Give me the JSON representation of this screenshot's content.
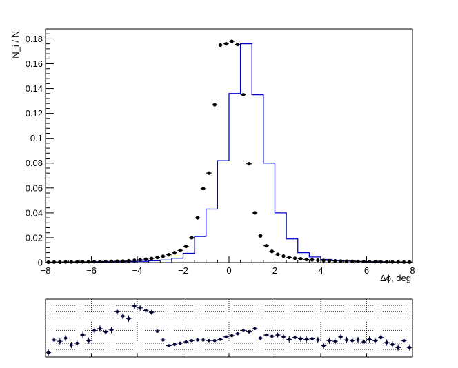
{
  "chart_data": [
    {
      "type": "histogram",
      "ylabel": "N_i / N",
      "xlabel": "Δϕ, deg",
      "xlim": [
        -8,
        8
      ],
      "ylim": [
        0,
        0.188
      ],
      "x_ticks": [
        -8,
        -6,
        -4,
        -2,
        0,
        2,
        4,
        6,
        8
      ],
      "x_tick_labels": [
        "−8",
        "−6",
        "−4",
        "−2",
        "0",
        "2",
        "4",
        "6",
        "8"
      ],
      "y_ticks": [
        0,
        0.02,
        0.04,
        0.06,
        0.08,
        0.1,
        0.12,
        0.14,
        0.16,
        0.18
      ],
      "y_tick_labels": [
        "0",
        "0.02",
        "0.04",
        "0.06",
        "0.08",
        "0.1",
        "0.12",
        "0.14",
        "0.16",
        "0.18"
      ],
      "grid": false,
      "histogram": {
        "color": "#0000cc",
        "bin_edges": [
          -8,
          -7.5,
          -7,
          -6.5,
          -6,
          -5.5,
          -5,
          -4.5,
          -4,
          -3.5,
          -3,
          -2.5,
          -2,
          -1.5,
          -1,
          -0.5,
          0,
          0.5,
          1,
          1.5,
          2,
          2.5,
          3,
          3.5,
          4,
          4.5,
          5,
          5.5,
          6,
          6.5,
          7,
          7.5,
          8
        ],
        "values": [
          0.0003,
          0.0003,
          0.0004,
          0.0004,
          0.0005,
          0.0006,
          0.0007,
          0.0008,
          0.001,
          0.0015,
          0.002,
          0.0035,
          0.0075,
          0.021,
          0.043,
          0.082,
          0.136,
          0.176,
          0.135,
          0.08,
          0.04,
          0.019,
          0.008,
          0.0045,
          0.0025,
          0.0018,
          0.0012,
          0.0009,
          0.0007,
          0.0006,
          0.0004,
          0.0003
        ]
      },
      "points": {
        "color": "#000000",
        "x": [
          -7.875,
          -7.625,
          -7.375,
          -7.125,
          -6.875,
          -6.625,
          -6.375,
          -6.125,
          -5.875,
          -5.625,
          -5.375,
          -5.125,
          -4.875,
          -4.625,
          -4.375,
          -4.125,
          -3.875,
          -3.625,
          -3.375,
          -3.125,
          -2.875,
          -2.625,
          -2.375,
          -2.125,
          -1.875,
          -1.625,
          -1.375,
          -1.125,
          -0.875,
          -0.625,
          -0.375,
          -0.125,
          0.125,
          0.375,
          0.625,
          0.875,
          1.125,
          1.375,
          1.625,
          1.875,
          2.125,
          2.375,
          2.625,
          2.875,
          3.125,
          3.375,
          3.625,
          3.875,
          4.125,
          4.375,
          4.625,
          4.875,
          5.125,
          5.375,
          5.625,
          5.875,
          6.125,
          6.375,
          6.625,
          6.875,
          7.125,
          7.375,
          7.625,
          7.875
        ],
        "y": [
          0.0003,
          0.0004,
          0.0004,
          0.0005,
          0.0005,
          0.0006,
          0.0006,
          0.0007,
          0.0007,
          0.0008,
          0.0009,
          0.001,
          0.0011,
          0.0012,
          0.0015,
          0.0018,
          0.0022,
          0.0027,
          0.0033,
          0.0041,
          0.0051,
          0.0063,
          0.0079,
          0.0098,
          0.013,
          0.02,
          0.036,
          0.0595,
          0.072,
          0.127,
          0.175,
          0.176,
          0.178,
          0.1755,
          0.135,
          0.0795,
          0.04,
          0.0215,
          0.0135,
          0.009,
          0.0067,
          0.0052,
          0.0042,
          0.0035,
          0.003,
          0.0025,
          0.0022,
          0.0019,
          0.0017,
          0.0015,
          0.0014,
          0.0012,
          0.0011,
          0.001,
          0.0009,
          0.0008,
          0.0008,
          0.0007,
          0.0006,
          0.0006,
          0.0005,
          0.0005,
          0.0004,
          0.0004
        ]
      }
    },
    {
      "type": "scatter",
      "xlim": [
        -8,
        8
      ],
      "ylim": [
        0.78,
        1.7
      ],
      "grid": true,
      "x_gridlines": [
        -8,
        -6,
        -4,
        -2,
        0,
        2,
        4,
        6,
        8
      ],
      "y_gridlines": [
        0.9,
        1.0,
        1.2,
        1.4,
        1.5,
        1.6,
        1.7
      ],
      "points": {
        "color": "#000033",
        "x": [
          -7.875,
          -7.625,
          -7.375,
          -7.125,
          -6.875,
          -6.625,
          -6.375,
          -6.125,
          -5.875,
          -5.625,
          -5.375,
          -5.125,
          -4.875,
          -4.625,
          -4.375,
          -4.125,
          -3.875,
          -3.625,
          -3.375,
          -3.125,
          -2.875,
          -2.625,
          -2.375,
          -2.125,
          -1.875,
          -1.625,
          -1.375,
          -1.125,
          -0.875,
          -0.625,
          -0.375,
          -0.125,
          0.125,
          0.375,
          0.625,
          0.875,
          1.125,
          1.375,
          1.625,
          1.875,
          2.125,
          2.375,
          2.625,
          2.875,
          3.125,
          3.375,
          3.625,
          3.875,
          4.125,
          4.375,
          4.625,
          4.875,
          5.125,
          5.375,
          5.625,
          5.875,
          6.125,
          6.375,
          6.625,
          6.875,
          7.125,
          7.375,
          7.625,
          7.875
        ],
        "y": [
          0.85,
          1.05,
          1.03,
          1.08,
          0.97,
          1.0,
          1.13,
          1.04,
          1.2,
          1.23,
          1.18,
          1.21,
          1.5,
          1.43,
          1.39,
          1.59,
          1.56,
          1.52,
          1.49,
          1.19,
          1.05,
          0.96,
          0.98,
          1.0,
          1.02,
          1.04,
          1.05,
          1.05,
          1.04,
          1.04,
          1.06,
          1.1,
          1.12,
          1.15,
          1.2,
          1.18,
          1.23,
          1.08,
          1.13,
          1.11,
          1.13,
          1.1,
          1.06,
          1.09,
          1.07,
          1.06,
          1.07,
          1.05,
          0.96,
          1.04,
          1.03,
          1.1,
          1.05,
          1.04,
          1.05,
          1.02,
          1.06,
          1.04,
          1.09,
          1.01,
          0.98,
          0.93,
          1.04,
          0.93
        ],
        "yerr": [
          0.05,
          0.05,
          0.05,
          0.05,
          0.05,
          0.05,
          0.05,
          0.05,
          0.05,
          0.05,
          0.05,
          0.05,
          0.05,
          0.05,
          0.05,
          0.05,
          0.05,
          0.04,
          0.04,
          0.02,
          0.015,
          0.01,
          0.01,
          0.01,
          0.01,
          0.01,
          0.01,
          0.01,
          0.01,
          0.01,
          0.01,
          0.01,
          0.01,
          0.01,
          0.01,
          0.01,
          0.01,
          0.02,
          0.02,
          0.03,
          0.04,
          0.04,
          0.05,
          0.05,
          0.05,
          0.05,
          0.05,
          0.05,
          0.05,
          0.05,
          0.05,
          0.05,
          0.05,
          0.05,
          0.05,
          0.05,
          0.05,
          0.05,
          0.05,
          0.05,
          0.05,
          0.05,
          0.05,
          0.05
        ]
      }
    }
  ]
}
